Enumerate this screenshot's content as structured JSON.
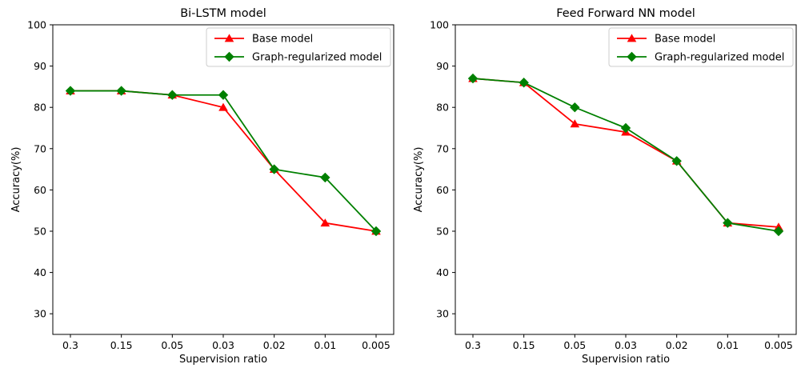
{
  "figure": {
    "background": "#ffffff",
    "text_color": "#000000",
    "axis_color": "#000000",
    "legend_border_color": "#cccccc"
  },
  "chart_data": [
    {
      "type": "line",
      "title": "Bi-LSTM model",
      "xlabel": "Supervision ratio",
      "ylabel": "Accuracy(%)",
      "categories": [
        "0.3",
        "0.15",
        "0.05",
        "0.03",
        "0.02",
        "0.01",
        "0.005"
      ],
      "yticks": [
        30,
        40,
        50,
        60,
        70,
        80,
        90,
        100
      ],
      "ylim": [
        25,
        100
      ],
      "grid": false,
      "legend_position": "upper right",
      "series": [
        {
          "name": "Base model",
          "color": "#ff0000",
          "marker": "triangle",
          "values": [
            84,
            84,
            83,
            80,
            65,
            52,
            50
          ]
        },
        {
          "name": "Graph-regularized model",
          "color": "#008000",
          "marker": "diamond",
          "values": [
            84,
            84,
            83,
            83,
            65,
            63,
            50
          ]
        }
      ]
    },
    {
      "type": "line",
      "title": "Feed Forward NN model",
      "xlabel": "Supervision ratio",
      "ylabel": "Accuracy(%)",
      "categories": [
        "0.3",
        "0.15",
        "0.05",
        "0.03",
        "0.02",
        "0.01",
        "0.005"
      ],
      "yticks": [
        30,
        40,
        50,
        60,
        70,
        80,
        90,
        100
      ],
      "ylim": [
        25,
        100
      ],
      "grid": false,
      "legend_position": "upper right",
      "series": [
        {
          "name": "Base model",
          "color": "#ff0000",
          "marker": "triangle",
          "values": [
            87,
            86,
            76,
            74,
            67,
            52,
            51
          ]
        },
        {
          "name": "Graph-regularized model",
          "color": "#008000",
          "marker": "diamond",
          "values": [
            87,
            86,
            80,
            75,
            67,
            52,
            50
          ]
        }
      ]
    }
  ]
}
